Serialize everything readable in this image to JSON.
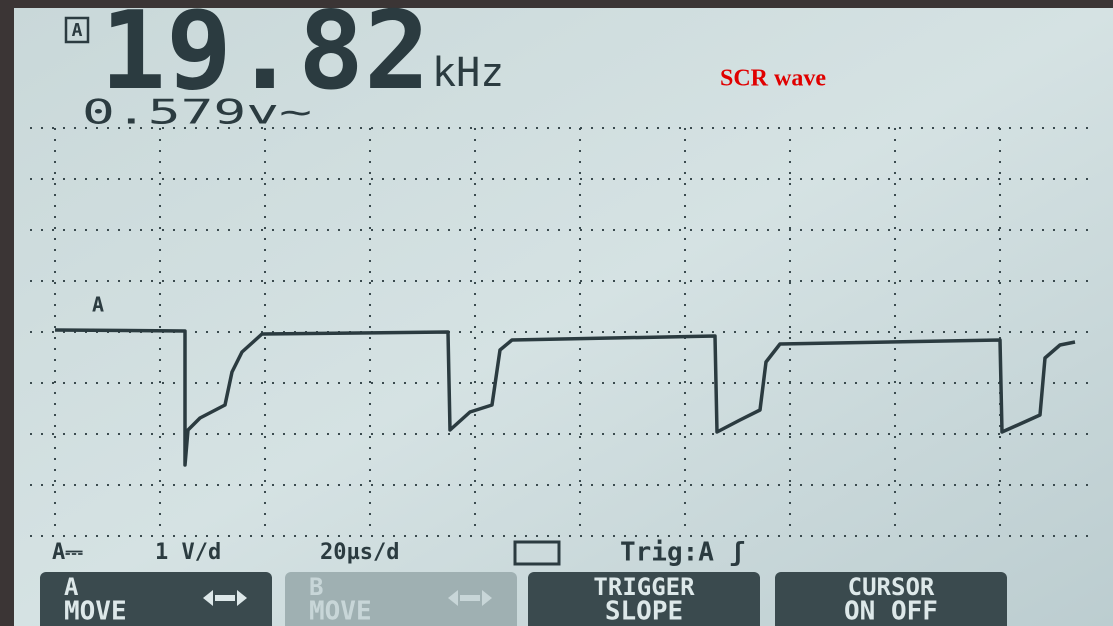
{
  "screen": {
    "channel_badge": "A",
    "frequency": "19.82",
    "frequency_unit": "kHz",
    "annotation": "SCR wave",
    "amplitude": "0.579v~",
    "trace_label": "A"
  },
  "status": {
    "coupling": "A⎓",
    "volts_per_div": "1 V/d",
    "time_per_div": "20µs/d",
    "trigger": "Trig:A ʃ"
  },
  "buttons": [
    {
      "line1": "A",
      "line2": "MOVE"
    },
    {
      "line1": "B",
      "line2": "MOVE"
    },
    {
      "line1": "TRIGGER",
      "line2": "SLOPE"
    },
    {
      "line1": "CURSOR",
      "line2": "ON  OFF"
    }
  ]
}
